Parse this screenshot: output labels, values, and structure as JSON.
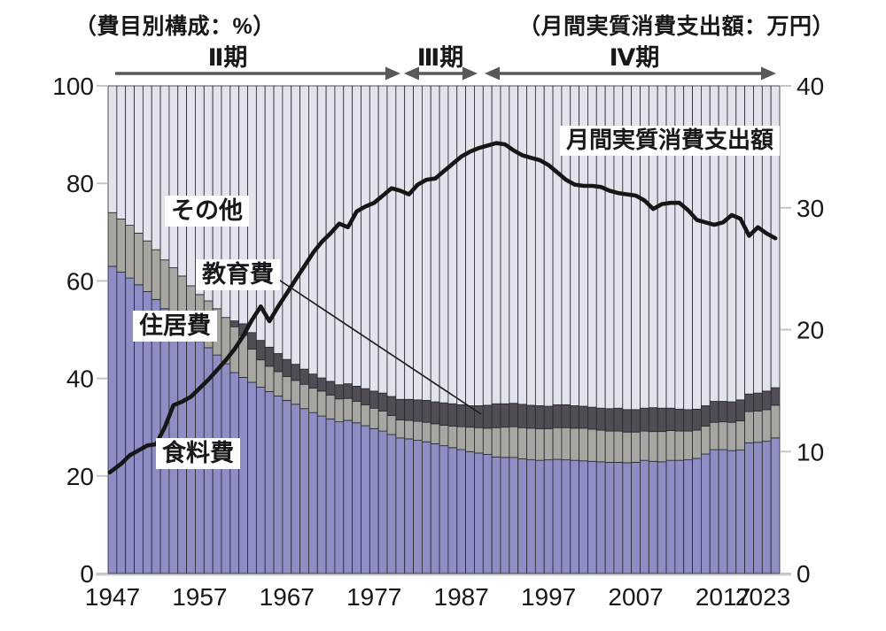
{
  "titles": {
    "left": "（費目別構成：%）",
    "right": "（月間実質消費支出額：万円）"
  },
  "periods": [
    {
      "label": "Ⅱ期"
    },
    {
      "label": "Ⅲ期"
    },
    {
      "label": "Ⅳ期"
    }
  ],
  "annotations": {
    "others": "その他",
    "education": "教育費",
    "housing": "住居費",
    "food": "食料費",
    "line": "月間実質消費支出額"
  },
  "chart_data": {
    "type": "bar",
    "subtype": "stacked-100pct-bars-with-line-overlay",
    "title": "",
    "xlabel": "",
    "ylabel_left": "費目別構成（%）",
    "ylabel_right": "月間実質消費支出額（万円）",
    "grid": false,
    "years": [
      1947,
      1948,
      1949,
      1950,
      1951,
      1952,
      1953,
      1954,
      1955,
      1956,
      1957,
      1958,
      1959,
      1960,
      1961,
      1962,
      1963,
      1964,
      1965,
      1966,
      1967,
      1968,
      1969,
      1970,
      1971,
      1972,
      1973,
      1974,
      1975,
      1976,
      1977,
      1978,
      1979,
      1980,
      1981,
      1982,
      1983,
      1984,
      1985,
      1986,
      1987,
      1988,
      1989,
      1990,
      1991,
      1992,
      1993,
      1994,
      1995,
      1996,
      1997,
      1998,
      1999,
      2000,
      2001,
      2002,
      2003,
      2004,
      2005,
      2006,
      2007,
      2008,
      2009,
      2010,
      2011,
      2012,
      2013,
      2014,
      2015,
      2016,
      2017,
      2018,
      2019,
      2020,
      2021,
      2022,
      2023
    ],
    "series": [
      {
        "name": "食料費",
        "unit": "%",
        "values": [
          63.0,
          61.8,
          60.6,
          59.2,
          57.8,
          56.2,
          54.3,
          52.8,
          51.2,
          49.3,
          47.6,
          46.3,
          44.8,
          43.0,
          41.2,
          40.2,
          39.2,
          38.2,
          37.3,
          36.4,
          35.5,
          34.7,
          33.8,
          33.0,
          32.3,
          31.7,
          31.1,
          31.4,
          30.9,
          30.3,
          29.7,
          29.2,
          28.5,
          27.8,
          27.6,
          27.3,
          27.0,
          26.6,
          26.2,
          25.8,
          25.4,
          25.0,
          24.7,
          24.4,
          23.9,
          23.8,
          23.8,
          23.5,
          23.3,
          23.2,
          23.3,
          23.4,
          23.3,
          23.2,
          23.1,
          23.0,
          22.9,
          22.8,
          22.8,
          22.7,
          22.8,
          23.2,
          23.0,
          22.9,
          23.2,
          23.2,
          23.3,
          23.6,
          24.5,
          25.4,
          25.4,
          25.2,
          25.3,
          26.8,
          26.9,
          27.1,
          27.8
        ]
      },
      {
        "name": "住居費",
        "unit": "%",
        "values": [
          11.0,
          10.9,
          10.8,
          10.6,
          10.4,
          10.2,
          10.0,
          9.9,
          9.8,
          9.7,
          9.6,
          9.6,
          9.5,
          9.5,
          9.4,
          8.6,
          6.8,
          5.6,
          5.2,
          5.0,
          4.9,
          4.9,
          5.0,
          5.0,
          5.1,
          4.9,
          4.7,
          4.5,
          4.4,
          4.3,
          4.2,
          4.1,
          3.9,
          3.7,
          3.8,
          3.9,
          4.0,
          4.1,
          4.2,
          4.4,
          4.7,
          5.0,
          5.2,
          5.4,
          6.0,
          6.2,
          6.3,
          6.4,
          6.5,
          6.5,
          6.4,
          6.5,
          6.6,
          6.6,
          6.7,
          6.6,
          6.5,
          6.4,
          6.4,
          6.3,
          6.2,
          6.0,
          6.1,
          6.2,
          6.1,
          6.0,
          5.9,
          5.8,
          5.7,
          5.6,
          5.7,
          5.8,
          6.0,
          6.4,
          6.4,
          6.5,
          6.7
        ]
      },
      {
        "name": "教育費",
        "unit": "%",
        "values": [
          0,
          0,
          0,
          0,
          0,
          0,
          0,
          0,
          0,
          0,
          0,
          0,
          0,
          0,
          1.2,
          2.4,
          3.4,
          4.0,
          3.9,
          3.7,
          3.5,
          3.3,
          3.1,
          2.9,
          2.7,
          2.8,
          2.9,
          3.0,
          3.1,
          3.3,
          3.5,
          3.7,
          3.9,
          4.2,
          4.3,
          4.4,
          4.5,
          4.5,
          4.6,
          4.6,
          4.5,
          4.4,
          4.5,
          4.7,
          4.9,
          4.8,
          4.8,
          4.8,
          4.7,
          4.7,
          4.6,
          4.7,
          4.7,
          4.6,
          4.5,
          4.5,
          4.5,
          4.6,
          4.7,
          4.6,
          4.6,
          4.7,
          4.9,
          4.8,
          4.6,
          4.5,
          4.4,
          4.3,
          4.2,
          4.3,
          4.2,
          4.2,
          4.3,
          3.6,
          3.7,
          3.8,
          3.6
        ]
      },
      {
        "name": "その他",
        "unit": "%",
        "values": "remainder-to-100"
      }
    ],
    "line": {
      "name": "月間実質消費支出額",
      "unit": "万円",
      "axis": "right",
      "values": [
        8.3,
        9.0,
        9.7,
        10.1,
        10.5,
        10.6,
        12.0,
        13.8,
        14.1,
        14.5,
        15.2,
        15.9,
        16.7,
        17.5,
        18.4,
        19.5,
        20.8,
        21.9,
        20.7,
        21.9,
        23.0,
        24.1,
        25.2,
        26.3,
        27.2,
        27.9,
        28.7,
        28.4,
        29.7,
        30.1,
        30.4,
        31.0,
        31.6,
        31.4,
        31.1,
        31.9,
        32.3,
        32.4,
        33.0,
        33.6,
        34.2,
        34.6,
        34.9,
        35.1,
        35.3,
        35.2,
        34.7,
        34.3,
        34.1,
        33.9,
        33.5,
        32.9,
        32.3,
        31.9,
        31.8,
        31.8,
        31.7,
        31.4,
        31.2,
        31.1,
        31.0,
        30.6,
        29.9,
        30.3,
        30.4,
        30.4,
        29.8,
        29.0,
        28.8,
        28.6,
        28.8,
        29.4,
        29.1,
        27.7,
        28.4,
        27.9,
        27.5
      ]
    },
    "left_axis": {
      "ticks": [
        100,
        80,
        60,
        40,
        20,
        0
      ],
      "min": 0,
      "max": 100
    },
    "right_axis": {
      "ticks": [
        40,
        30,
        20,
        10,
        0
      ],
      "min": 0,
      "max": 40
    },
    "x_ticks": [
      1947,
      1957,
      1967,
      1977,
      1987,
      1997,
      2007,
      2017,
      2023
    ],
    "legend_position": "inline-annotations",
    "colors": {
      "food": "#8f8ec4",
      "housing": "#a7a6a0",
      "education": "#504d55",
      "others": "#e3e3ee",
      "line": "#161616",
      "bar_border": "#26262e",
      "arrow": "#58585a",
      "tick": "#c4c4cc",
      "baseline": "#cdced6",
      "text": "#17171c"
    }
  }
}
